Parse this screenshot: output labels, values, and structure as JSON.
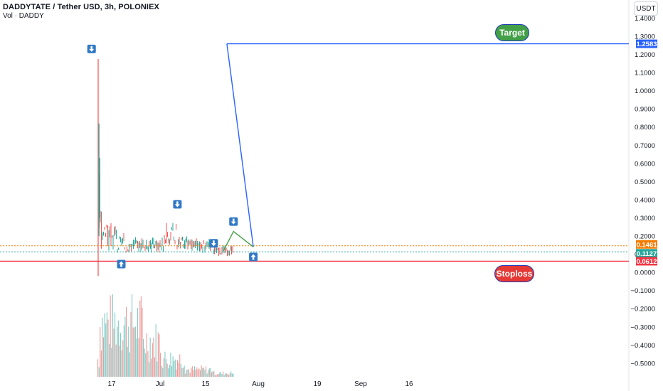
{
  "header": {
    "title": "DADDYTATE / Tether USD, 3h, POLONIEX",
    "volume": "Vol · DADDY"
  },
  "currency_button": "USDT",
  "annotations": {
    "target": "Target",
    "stoploss": "Stoploss"
  },
  "price_labels": {
    "target": "1.2583",
    "orange": "0.1461",
    "current": "0.1127",
    "stop": "0.0612"
  },
  "colors": {
    "target_line": "#2962ff",
    "stop_line": "#f23645",
    "orange_line": "#f57c00",
    "current_line": "#26a69a",
    "path_green": "#43a047",
    "arrow_blue": "#3179c6",
    "volume_red": "#ef9a9a",
    "volume_green": "#80cbc4"
  },
  "chart_data": {
    "type": "candlestick",
    "y_ticks": [
      "1.4000",
      "1.3000",
      "1.2000",
      "1.1000",
      "1.0000",
      "0.9000",
      "0.8000",
      "0.7000",
      "0.6000",
      "0.5000",
      "0.4000",
      "0.3000",
      "0.2000",
      "0.1000",
      "0.0000",
      "−0.1000",
      "−0.2000",
      "−0.3000",
      "−0.4000",
      "−0.5000"
    ],
    "x_ticks": [
      "17",
      "Jul",
      "15",
      "Aug",
      "19",
      "Sep",
      "16"
    ],
    "ylim": [
      -0.55,
      1.45
    ],
    "horizontal_lines": [
      {
        "name": "target",
        "value": 1.2583,
        "style": "solid"
      },
      {
        "name": "orange",
        "value": 0.1461,
        "style": "dotted"
      },
      {
        "name": "current",
        "value": 0.1127,
        "style": "dotted"
      },
      {
        "name": "stop",
        "value": 0.0612,
        "style": "solid"
      }
    ],
    "projection_path": [
      {
        "date": "Jul 21",
        "value": 0.12
      },
      {
        "date": "Jul 24",
        "value": 0.225
      },
      {
        "date": "Jul 30",
        "value": 0.14
      }
    ],
    "target_line_path": [
      {
        "date": "Jul 30",
        "value": 0.14
      },
      {
        "date": "Jul 22",
        "value": 1.2583
      }
    ],
    "price_series_approx": [
      {
        "date": "Jun 13",
        "high": 1.175,
        "low": -0.02
      },
      {
        "date": "Jun 14",
        "high": 0.52,
        "low": 0.15
      },
      {
        "date": "Jun 16",
        "high": 0.38,
        "low": 0.16
      },
      {
        "date": "Jun 19",
        "high": 0.26,
        "low": 0.12
      },
      {
        "date": "Jun 22",
        "high": 0.21,
        "low": 0.1
      },
      {
        "date": "Jun 25",
        "high": 0.2,
        "low": 0.11
      },
      {
        "date": "Jun 28",
        "high": 0.17,
        "low": 0.12
      },
      {
        "date": "Jul 2",
        "high": 0.19,
        "low": 0.12
      },
      {
        "date": "Jul 5",
        "high": 0.32,
        "low": 0.14
      },
      {
        "date": "Jul 8",
        "high": 0.22,
        "low": 0.14
      },
      {
        "date": "Jul 12",
        "high": 0.19,
        "low": 0.13
      },
      {
        "date": "Jul 16",
        "high": 0.17,
        "low": 0.11
      },
      {
        "date": "Jul 20",
        "high": 0.14,
        "low": 0.1
      }
    ],
    "signal_arrows": [
      {
        "type": "sell",
        "date": "Jun 11",
        "value": 1.175
      },
      {
        "type": "buy",
        "date": "Jun 20",
        "value": 0.1
      },
      {
        "type": "sell",
        "date": "Jul 7",
        "value": 0.32
      },
      {
        "type": "sell",
        "date": "Jul 18",
        "value": 0.105
      },
      {
        "type": "sell",
        "date": "Jul 24",
        "value": 0.225
      },
      {
        "type": "buy",
        "date": "Jul 30",
        "value": 0.14
      }
    ]
  }
}
